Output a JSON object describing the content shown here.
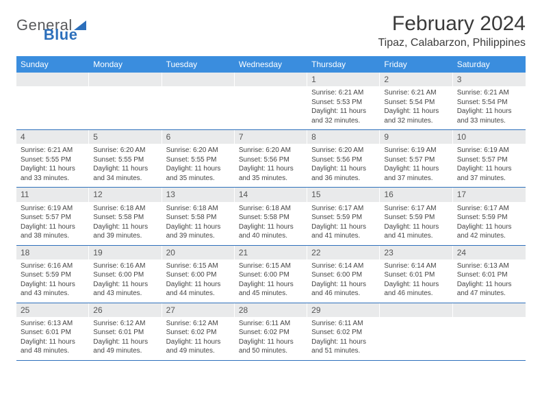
{
  "brand": {
    "part1": "General",
    "part2": "Blue"
  },
  "title": "February 2024",
  "location": "Tipaz, Calabarzon, Philippines",
  "colors": {
    "header_bg": "#3a8dde",
    "header_text": "#ffffff",
    "daynum_bg": "#e9eaeb",
    "week_border": "#2c6fbb",
    "text": "#444444",
    "brand_gray": "#58595b",
    "brand_blue": "#2c6fbb"
  },
  "day_headers": [
    "Sunday",
    "Monday",
    "Tuesday",
    "Wednesday",
    "Thursday",
    "Friday",
    "Saturday"
  ],
  "weeks": [
    [
      {
        "empty": true
      },
      {
        "empty": true
      },
      {
        "empty": true
      },
      {
        "empty": true
      },
      {
        "n": "1",
        "sunrise": "Sunrise: 6:21 AM",
        "sunset": "Sunset: 5:53 PM",
        "d1": "Daylight: 11 hours",
        "d2": "and 32 minutes."
      },
      {
        "n": "2",
        "sunrise": "Sunrise: 6:21 AM",
        "sunset": "Sunset: 5:54 PM",
        "d1": "Daylight: 11 hours",
        "d2": "and 32 minutes."
      },
      {
        "n": "3",
        "sunrise": "Sunrise: 6:21 AM",
        "sunset": "Sunset: 5:54 PM",
        "d1": "Daylight: 11 hours",
        "d2": "and 33 minutes."
      }
    ],
    [
      {
        "n": "4",
        "sunrise": "Sunrise: 6:21 AM",
        "sunset": "Sunset: 5:55 PM",
        "d1": "Daylight: 11 hours",
        "d2": "and 33 minutes."
      },
      {
        "n": "5",
        "sunrise": "Sunrise: 6:20 AM",
        "sunset": "Sunset: 5:55 PM",
        "d1": "Daylight: 11 hours",
        "d2": "and 34 minutes."
      },
      {
        "n": "6",
        "sunrise": "Sunrise: 6:20 AM",
        "sunset": "Sunset: 5:55 PM",
        "d1": "Daylight: 11 hours",
        "d2": "and 35 minutes."
      },
      {
        "n": "7",
        "sunrise": "Sunrise: 6:20 AM",
        "sunset": "Sunset: 5:56 PM",
        "d1": "Daylight: 11 hours",
        "d2": "and 35 minutes."
      },
      {
        "n": "8",
        "sunrise": "Sunrise: 6:20 AM",
        "sunset": "Sunset: 5:56 PM",
        "d1": "Daylight: 11 hours",
        "d2": "and 36 minutes."
      },
      {
        "n": "9",
        "sunrise": "Sunrise: 6:19 AM",
        "sunset": "Sunset: 5:57 PM",
        "d1": "Daylight: 11 hours",
        "d2": "and 37 minutes."
      },
      {
        "n": "10",
        "sunrise": "Sunrise: 6:19 AM",
        "sunset": "Sunset: 5:57 PM",
        "d1": "Daylight: 11 hours",
        "d2": "and 37 minutes."
      }
    ],
    [
      {
        "n": "11",
        "sunrise": "Sunrise: 6:19 AM",
        "sunset": "Sunset: 5:57 PM",
        "d1": "Daylight: 11 hours",
        "d2": "and 38 minutes."
      },
      {
        "n": "12",
        "sunrise": "Sunrise: 6:18 AM",
        "sunset": "Sunset: 5:58 PM",
        "d1": "Daylight: 11 hours",
        "d2": "and 39 minutes."
      },
      {
        "n": "13",
        "sunrise": "Sunrise: 6:18 AM",
        "sunset": "Sunset: 5:58 PM",
        "d1": "Daylight: 11 hours",
        "d2": "and 39 minutes."
      },
      {
        "n": "14",
        "sunrise": "Sunrise: 6:18 AM",
        "sunset": "Sunset: 5:58 PM",
        "d1": "Daylight: 11 hours",
        "d2": "and 40 minutes."
      },
      {
        "n": "15",
        "sunrise": "Sunrise: 6:17 AM",
        "sunset": "Sunset: 5:59 PM",
        "d1": "Daylight: 11 hours",
        "d2": "and 41 minutes."
      },
      {
        "n": "16",
        "sunrise": "Sunrise: 6:17 AM",
        "sunset": "Sunset: 5:59 PM",
        "d1": "Daylight: 11 hours",
        "d2": "and 41 minutes."
      },
      {
        "n": "17",
        "sunrise": "Sunrise: 6:17 AM",
        "sunset": "Sunset: 5:59 PM",
        "d1": "Daylight: 11 hours",
        "d2": "and 42 minutes."
      }
    ],
    [
      {
        "n": "18",
        "sunrise": "Sunrise: 6:16 AM",
        "sunset": "Sunset: 5:59 PM",
        "d1": "Daylight: 11 hours",
        "d2": "and 43 minutes."
      },
      {
        "n": "19",
        "sunrise": "Sunrise: 6:16 AM",
        "sunset": "Sunset: 6:00 PM",
        "d1": "Daylight: 11 hours",
        "d2": "and 43 minutes."
      },
      {
        "n": "20",
        "sunrise": "Sunrise: 6:15 AM",
        "sunset": "Sunset: 6:00 PM",
        "d1": "Daylight: 11 hours",
        "d2": "and 44 minutes."
      },
      {
        "n": "21",
        "sunrise": "Sunrise: 6:15 AM",
        "sunset": "Sunset: 6:00 PM",
        "d1": "Daylight: 11 hours",
        "d2": "and 45 minutes."
      },
      {
        "n": "22",
        "sunrise": "Sunrise: 6:14 AM",
        "sunset": "Sunset: 6:00 PM",
        "d1": "Daylight: 11 hours",
        "d2": "and 46 minutes."
      },
      {
        "n": "23",
        "sunrise": "Sunrise: 6:14 AM",
        "sunset": "Sunset: 6:01 PM",
        "d1": "Daylight: 11 hours",
        "d2": "and 46 minutes."
      },
      {
        "n": "24",
        "sunrise": "Sunrise: 6:13 AM",
        "sunset": "Sunset: 6:01 PM",
        "d1": "Daylight: 11 hours",
        "d2": "and 47 minutes."
      }
    ],
    [
      {
        "n": "25",
        "sunrise": "Sunrise: 6:13 AM",
        "sunset": "Sunset: 6:01 PM",
        "d1": "Daylight: 11 hours",
        "d2": "and 48 minutes."
      },
      {
        "n": "26",
        "sunrise": "Sunrise: 6:12 AM",
        "sunset": "Sunset: 6:01 PM",
        "d1": "Daylight: 11 hours",
        "d2": "and 49 minutes."
      },
      {
        "n": "27",
        "sunrise": "Sunrise: 6:12 AM",
        "sunset": "Sunset: 6:02 PM",
        "d1": "Daylight: 11 hours",
        "d2": "and 49 minutes."
      },
      {
        "n": "28",
        "sunrise": "Sunrise: 6:11 AM",
        "sunset": "Sunset: 6:02 PM",
        "d1": "Daylight: 11 hours",
        "d2": "and 50 minutes."
      },
      {
        "n": "29",
        "sunrise": "Sunrise: 6:11 AM",
        "sunset": "Sunset: 6:02 PM",
        "d1": "Daylight: 11 hours",
        "d2": "and 51 minutes."
      },
      {
        "empty": true
      },
      {
        "empty": true
      }
    ]
  ]
}
